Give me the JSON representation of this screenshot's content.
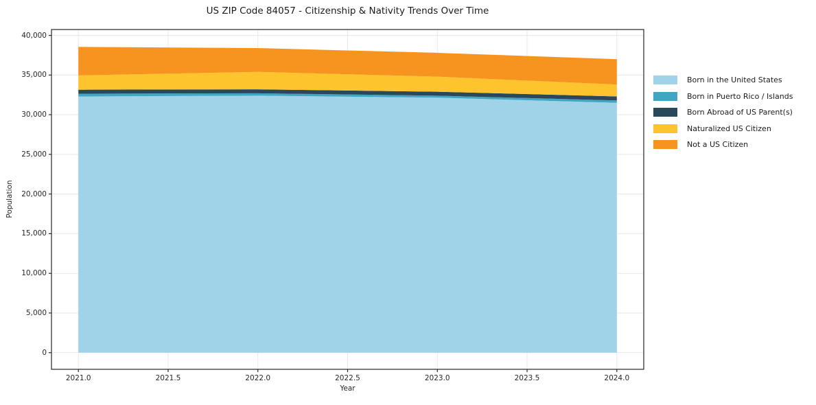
{
  "chart_data": {
    "type": "area",
    "stacked": true,
    "title": "US ZIP Code 84057 - Citizenship & Nativity Trends Over Time",
    "xlabel": "Year",
    "ylabel": "Population",
    "x": [
      2021,
      2022,
      2023,
      2024
    ],
    "series": [
      {
        "name": "Born in the United States",
        "color": "#a0d2e8",
        "values": [
          32300,
          32400,
          32150,
          31500
        ]
      },
      {
        "name": "Born in Puerto Rico / Islands",
        "color": "#41a6c4",
        "values": [
          350,
          300,
          250,
          300
        ]
      },
      {
        "name": "Born Abroad of US Parent(s)",
        "color": "#29485a",
        "values": [
          500,
          500,
          500,
          500
        ]
      },
      {
        "name": "Naturalized US Citizen",
        "color": "#fdc42e",
        "values": [
          1800,
          2200,
          1900,
          1500
        ]
      },
      {
        "name": "Not a US Citizen",
        "color": "#f7941f",
        "values": [
          3600,
          3000,
          3000,
          3200
        ]
      }
    ],
    "xlim": [
      2020.85,
      2024.15
    ],
    "ylim": [
      -2100,
      40740
    ],
    "xticks": [
      "2021.0",
      "2021.5",
      "2022.0",
      "2022.5",
      "2023.0",
      "2023.5",
      "2024.0"
    ],
    "xtick_values": [
      2021.0,
      2021.5,
      2022.0,
      2022.5,
      2023.0,
      2023.5,
      2024.0
    ],
    "yticks": [
      "0",
      "5,000",
      "10,000",
      "15,000",
      "20,000",
      "25,000",
      "30,000",
      "35,000",
      "40,000"
    ],
    "ytick_values": [
      0,
      5000,
      10000,
      15000,
      20000,
      25000,
      30000,
      35000,
      40000
    ],
    "grid": true,
    "legend_position": "right"
  },
  "axes": {
    "grid_color": "#e9e9e9",
    "spine_color": "#262626",
    "text_color": "#262626"
  }
}
